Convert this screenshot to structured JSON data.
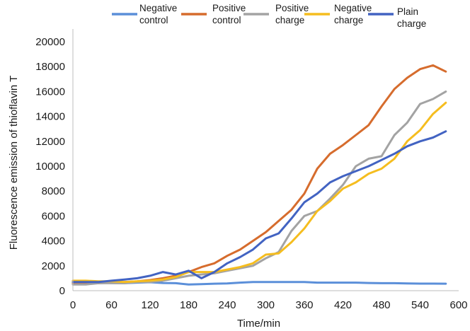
{
  "chart_data": {
    "type": "line",
    "title": "",
    "xlabel": "Time/min",
    "ylabel": "Fluorescence emission of thioflavin T",
    "xlim": [
      0,
      600
    ],
    "ylim": [
      0,
      20000
    ],
    "xticks": [
      0,
      60,
      120,
      180,
      240,
      300,
      360,
      420,
      480,
      540,
      600
    ],
    "yticks": [
      0,
      2000,
      4000,
      6000,
      8000,
      10000,
      12000,
      14000,
      16000,
      18000,
      20000
    ],
    "x_tick_labels": [
      "0",
      "60",
      "120",
      "180",
      "240",
      "300",
      "360",
      "420",
      "480",
      "540",
      "600"
    ],
    "y_tick_labels": [
      "0",
      "2000",
      "4000",
      "6000",
      "8000",
      "10000",
      "12000",
      "14000",
      "16000",
      "18000",
      "20000"
    ],
    "grid": false,
    "legend_position": "top",
    "x": [
      0,
      20,
      40,
      60,
      80,
      100,
      120,
      140,
      160,
      180,
      200,
      220,
      240,
      260,
      280,
      300,
      320,
      340,
      360,
      380,
      400,
      420,
      440,
      460,
      480,
      500,
      520,
      540,
      560,
      580
    ],
    "series": [
      {
        "name": "Negative control",
        "legend_lines": [
          "Negative",
          "control"
        ],
        "color": "#5b8fd9",
        "values": [
          600,
          620,
          650,
          620,
          600,
          650,
          680,
          620,
          600,
          500,
          520,
          560,
          580,
          650,
          700,
          700,
          700,
          700,
          700,
          650,
          650,
          650,
          650,
          620,
          600,
          600,
          580,
          570,
          570,
          560
        ]
      },
      {
        "name": "Positive control",
        "legend_lines": [
          "Positive",
          "control"
        ],
        "color": "#d66c2d",
        "values": [
          600,
          600,
          600,
          650,
          700,
          750,
          850,
          1000,
          1200,
          1500,
          1900,
          2200,
          2800,
          3300,
          4000,
          4700,
          5600,
          6500,
          7800,
          9800,
          11000,
          11700,
          12500,
          13300,
          14800,
          16200,
          17100,
          17800,
          18100,
          17600
        ]
      },
      {
        "name": "Positive charge",
        "legend_lines": [
          "Positive",
          "charge"
        ],
        "color": "#a3a3a3",
        "values": [
          500,
          500,
          600,
          600,
          600,
          700,
          700,
          800,
          1000,
          1200,
          1300,
          1400,
          1600,
          1800,
          2000,
          2600,
          3100,
          4800,
          6000,
          6400,
          7400,
          8500,
          10000,
          10600,
          10800,
          12500,
          13500,
          15000,
          15400,
          16000
        ]
      },
      {
        "name": "Negative charge",
        "legend_lines": [
          "Negative",
          "charge"
        ],
        "color": "#f5bd1f",
        "values": [
          800,
          800,
          750,
          750,
          700,
          750,
          800,
          900,
          1100,
          1500,
          1500,
          1500,
          1700,
          1900,
          2200,
          2900,
          3000,
          3900,
          5000,
          6400,
          7200,
          8200,
          8700,
          9400,
          9800,
          10600,
          12000,
          12900,
          14200,
          15100
        ]
      },
      {
        "name": "Plain charge",
        "legend_lines": [
          "Plain",
          "charge"
        ],
        "color": "#4263c2",
        "values": [
          700,
          700,
          700,
          800,
          900,
          1000,
          1200,
          1500,
          1300,
          1600,
          1000,
          1500,
          2200,
          2700,
          3300,
          4200,
          4600,
          5800,
          7100,
          7800,
          8700,
          9200,
          9600,
          10000,
          10500,
          11000,
          11600,
          12000,
          12300,
          12800
        ]
      }
    ]
  }
}
